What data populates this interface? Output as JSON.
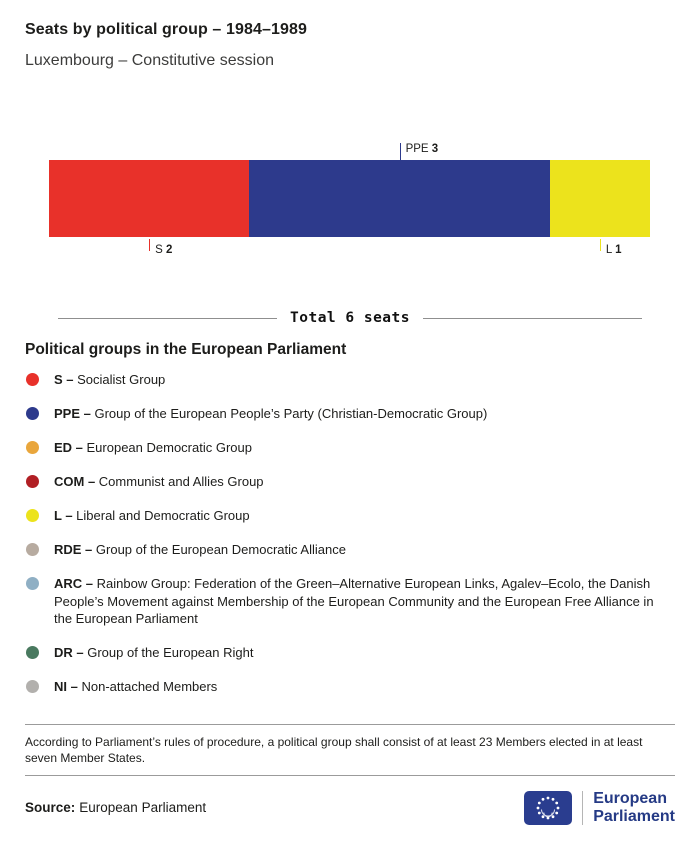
{
  "header": {
    "title": "Seats by political group – 1984–1989",
    "subtitle": "Luxembourg – Constitutive session"
  },
  "chart_data": {
    "type": "bar",
    "variant": "horizontal-stacked",
    "title": "Seats by political group – 1984–1989",
    "subtitle": "Luxembourg – Constitutive session",
    "categories": [
      "S",
      "PPE",
      "L"
    ],
    "values": [
      2,
      3,
      1
    ],
    "total": 6,
    "total_label": "Total 6 seats",
    "segments": [
      {
        "code": "S",
        "seats": 2,
        "color": "#e8312a",
        "label_position": "below"
      },
      {
        "code": "PPE",
        "seats": 3,
        "color": "#2d3a8c",
        "label_position": "above"
      },
      {
        "code": "L",
        "seats": 1,
        "color": "#ece31c",
        "label_position": "below"
      }
    ]
  },
  "legend": {
    "heading": "Political groups in the European Parliament",
    "items": [
      {
        "code": "S –",
        "name": "Socialist Group",
        "color": "#e8312a"
      },
      {
        "code": "PPE –",
        "name": "Group of the European People’s Party (Christian-Democratic Group)",
        "color": "#2d3a8c"
      },
      {
        "code": "ED –",
        "name": "European Democratic Group",
        "color": "#e9a63c"
      },
      {
        "code": "COM –",
        "name": "Communist and Allies Group",
        "color": "#b11f24"
      },
      {
        "code": "L –",
        "name": "Liberal and Democratic Group",
        "color": "#ece31c"
      },
      {
        "code": "RDE –",
        "name": "Group of the European Democratic Alliance",
        "color": "#b7aba0"
      },
      {
        "code": "ARC –",
        "name": "Rainbow Group: Federation of the Green–Alternative European Links, Agalev–Ecolo, the Danish People’s Movement against Membership of the European Community and the European Free Alliance in the European Parliament",
        "color": "#8fafc4"
      },
      {
        "code": "DR –",
        "name": "Group of the European Right",
        "color": "#49795f"
      },
      {
        "code": "NI –",
        "name": "Non-attached Members",
        "color": "#b2b0ad"
      }
    ]
  },
  "footnote": "According to Parliament’s rules of procedure, a political group shall consist of at least 23 Members elected in at least seven Member States.",
  "source": {
    "label": "Source:",
    "value": "European Parliament"
  },
  "logo": {
    "line1": "European",
    "line2": "Parliament"
  }
}
